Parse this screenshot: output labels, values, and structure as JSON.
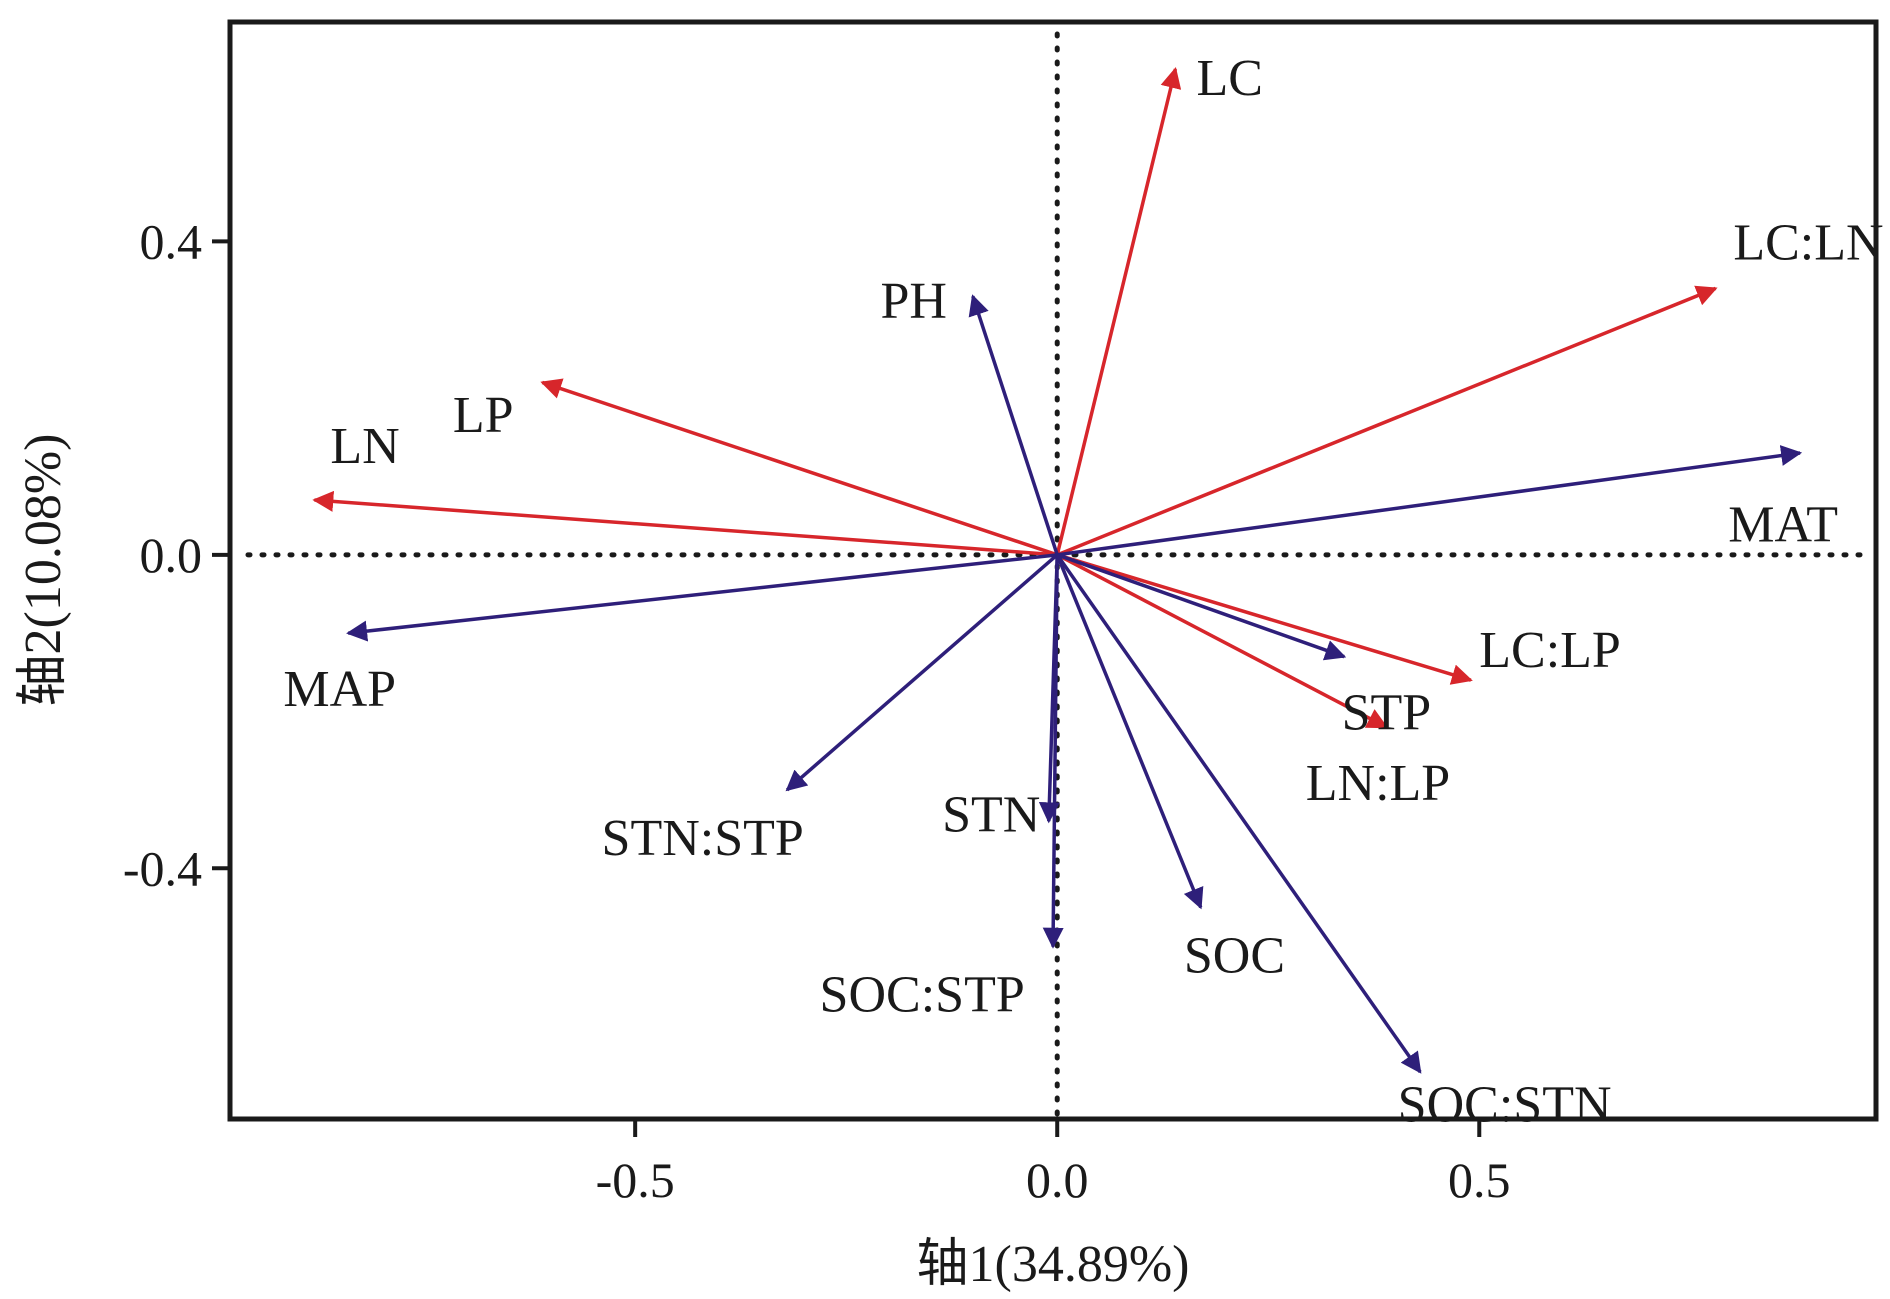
{
  "chart_data": {
    "type": "biplot",
    "xlabel": "轴1(34.89%)",
    "ylabel": "轴2(10.08%)",
    "xlim": [
      -0.98,
      0.97
    ],
    "ylim": [
      -0.72,
      0.68
    ],
    "xticks": [
      -0.5,
      0.0,
      0.5
    ],
    "xtick_labels": [
      "-0.5",
      "0.0",
      "0.5"
    ],
    "yticks": [
      -0.4,
      0.0,
      0.4
    ],
    "ytick_labels": [
      "-0.4",
      "0.0",
      "0.4"
    ],
    "reference_lines": "dotted lines at x=0 and y=0",
    "colors": {
      "red": "#d7262b",
      "blue": "#2e1f7a",
      "frame": "#1a1a1a"
    },
    "vectors": [
      {
        "label": "LC",
        "x": 0.14,
        "y": 0.62,
        "color": "red",
        "label_dx": 0.025,
        "label_dy": -0.01,
        "anchor": "start"
      },
      {
        "label": "LC:LN",
        "x": 0.78,
        "y": 0.34,
        "color": "red",
        "label_dx": 0.11,
        "label_dy": 0.06,
        "anchor": "middle"
      },
      {
        "label": "LP",
        "x": -0.61,
        "y": 0.22,
        "color": "red",
        "label_dx": -0.07,
        "label_dy": -0.04,
        "anchor": "middle"
      },
      {
        "label": "LN",
        "x": -0.88,
        "y": 0.07,
        "color": "red",
        "label_dx": 0.06,
        "label_dy": 0.07,
        "anchor": "middle"
      },
      {
        "label": "LC:LP",
        "x": 0.49,
        "y": -0.16,
        "color": "red",
        "label_dx": 0.01,
        "label_dy": 0.04,
        "anchor": "start"
      },
      {
        "label": "LN:LP",
        "x": 0.39,
        "y": -0.22,
        "color": "red",
        "label_dx": -0.01,
        "label_dy": -0.07,
        "anchor": "middle"
      },
      {
        "label": "PH",
        "x": -0.1,
        "y": 0.33,
        "color": "blue",
        "label_dx": -0.07,
        "label_dy": -0.005,
        "anchor": "middle"
      },
      {
        "label": "MAT",
        "x": 0.88,
        "y": 0.13,
        "color": "blue",
        "label_dx": -0.02,
        "label_dy": -0.09,
        "anchor": "middle"
      },
      {
        "label": "MAP",
        "x": -0.84,
        "y": -0.1,
        "color": "blue",
        "label_dx": -0.01,
        "label_dy": -0.07,
        "anchor": "middle"
      },
      {
        "label": "STP",
        "x": 0.34,
        "y": -0.13,
        "color": "blue",
        "label_dx": 0.05,
        "label_dy": -0.07,
        "anchor": "middle"
      },
      {
        "label": "STN:STP",
        "x": -0.32,
        "y": -0.3,
        "color": "blue",
        "label_dx": -0.1,
        "label_dy": -0.06,
        "anchor": "middle"
      },
      {
        "label": "STN",
        "x": -0.01,
        "y": -0.34,
        "color": "blue",
        "label_dx": -0.01,
        "label_dy": 0.01,
        "anchor": "end"
      },
      {
        "label": "SOC:STP",
        "x": -0.005,
        "y": -0.5,
        "color": "blue",
        "label_dx": -0.155,
        "label_dy": -0.06,
        "anchor": "middle"
      },
      {
        "label": "SOC",
        "x": 0.17,
        "y": -0.45,
        "color": "blue",
        "label_dx": 0.04,
        "label_dy": -0.06,
        "anchor": "middle"
      },
      {
        "label": "SOC:STN",
        "x": 0.43,
        "y": -0.66,
        "color": "blue",
        "label_dx": 0.1,
        "label_dy": -0.04,
        "anchor": "middle"
      }
    ]
  }
}
